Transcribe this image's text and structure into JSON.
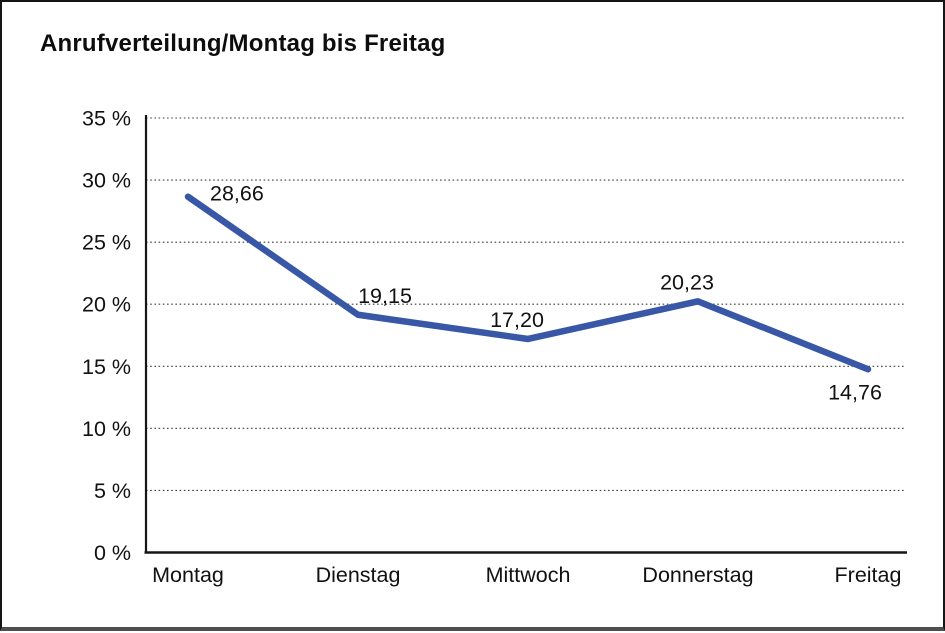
{
  "title": "Anrufverteilung/Montag bis Freitag",
  "chart_data": {
    "type": "line",
    "title": "Anrufverteilung/Montag bis Freitag",
    "categories": [
      "Montag",
      "Dienstag",
      "Mittwoch",
      "Donnerstag",
      "Freitag"
    ],
    "values": [
      28.66,
      19.15,
      17.2,
      20.23,
      14.76
    ],
    "value_labels": [
      "28,66",
      "19,15",
      "17,20",
      "20,23",
      "14,76"
    ],
    "label_positions": [
      "right",
      "above",
      "above",
      "above",
      "below"
    ],
    "xlabel": "",
    "ylabel": "",
    "ylim": [
      0,
      35
    ],
    "ytick_step": 5,
    "ytick_labels": [
      "0 %",
      "5 %",
      "10 %",
      "15 %",
      "20 %",
      "25 %",
      "30 %",
      "35 %"
    ],
    "grid": "horizontal-dotted",
    "legend": "none",
    "series_name": "Anrufverteilung"
  },
  "colors": {
    "line": "#3857A6",
    "text": "#111111",
    "grid": "#3c3c3c",
    "axis": "#161616",
    "background": "#ffffff"
  }
}
